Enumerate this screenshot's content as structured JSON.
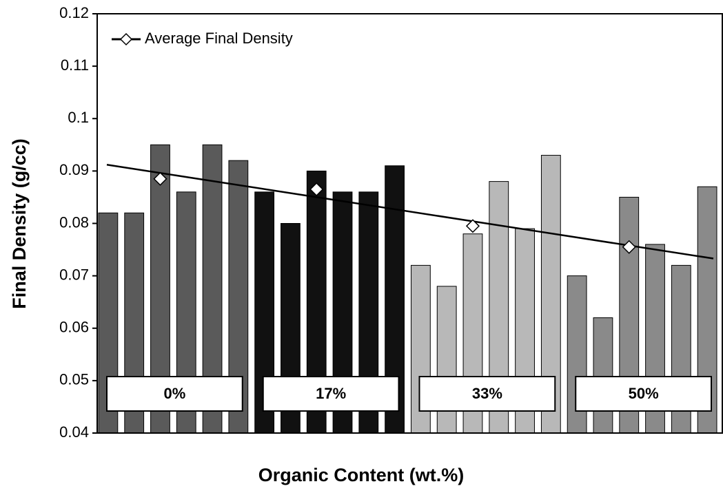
{
  "chart_data": {
    "type": "bar",
    "ylabel": "Final Density (g/cc)",
    "xlabel": "Organic Content (wt.%)",
    "ylim": [
      0.04,
      0.12
    ],
    "yticks": [
      0.04,
      0.05,
      0.06,
      0.07,
      0.08,
      0.09,
      0.1,
      0.11,
      0.12
    ],
    "groups": [
      {
        "label": "0%",
        "color": "#5a5a5a",
        "values": [
          0.082,
          0.082,
          0.095,
          0.086,
          0.095,
          0.092
        ]
      },
      {
        "label": "17%",
        "color": "#111111",
        "values": [
          0.086,
          0.08,
          0.09,
          0.086,
          0.086,
          0.091
        ]
      },
      {
        "label": "33%",
        "color": "#b8b8b8",
        "values": [
          0.072,
          0.068,
          0.078,
          0.088,
          0.079,
          0.093
        ]
      },
      {
        "label": "50%",
        "color": "#8a8a8a",
        "values": [
          0.07,
          0.062,
          0.085,
          0.076,
          0.072,
          0.087
        ]
      }
    ],
    "average": {
      "name": "Average Final Density",
      "values": [
        0.0885,
        0.0865,
        0.0795,
        0.0755
      ]
    },
    "trend": {
      "values": [
        0.0912,
        0.0733
      ]
    },
    "legend": "upper left"
  }
}
